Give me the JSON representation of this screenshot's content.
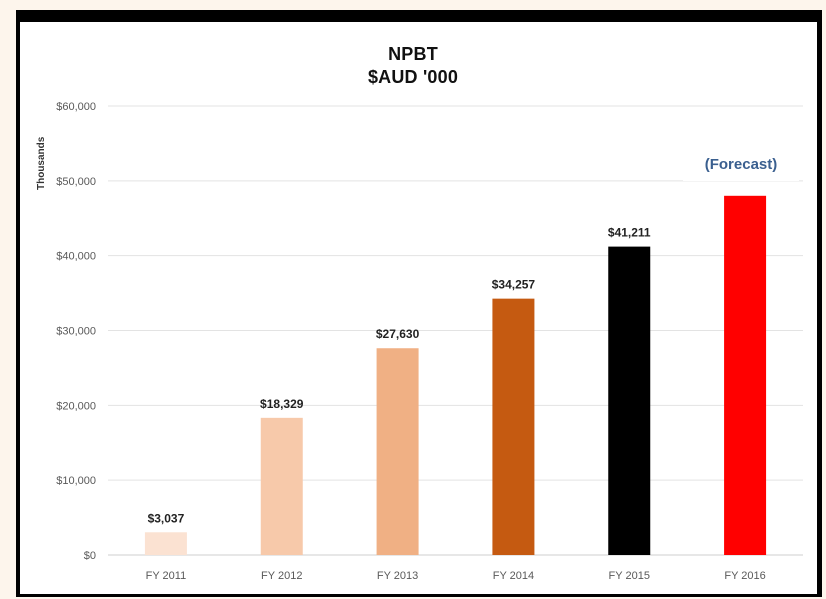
{
  "chart_data": {
    "type": "bar",
    "title": "NPBT",
    "subtitle": "$AUD '000",
    "ylabel": "Thousands",
    "categories": [
      "FY 2011",
      "FY 2012",
      "FY 2013",
      "FY 2014",
      "FY 2015",
      "FY 2016"
    ],
    "values": [
      3037,
      18329,
      27630,
      34257,
      41211,
      48000
    ],
    "data_labels": [
      "$3,037",
      "$18,329",
      "$27,630",
      "$34,257",
      "$41,211",
      ""
    ],
    "bar_colors": [
      "#fbe2d2",
      "#f7c9aa",
      "#f0b084",
      "#c55a11",
      "#000000",
      "#ff0000"
    ],
    "yticks": [
      0,
      10000,
      20000,
      30000,
      40000,
      50000,
      60000
    ],
    "ytick_labels": [
      "$0",
      "$10,000",
      "$20,000",
      "$30,000",
      "$40,000",
      "$50,000",
      "$60,000"
    ],
    "ylim": [
      0,
      60000
    ],
    "grid": true,
    "annotation": "(Forecast)"
  }
}
